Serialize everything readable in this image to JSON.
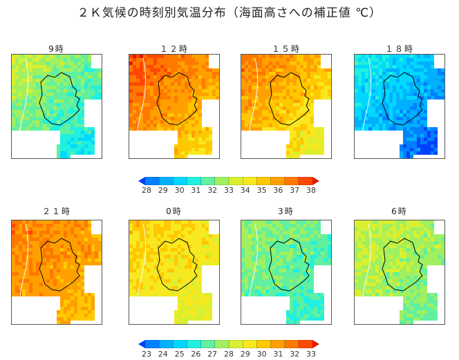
{
  "title": "２Ｋ気候の時刻別気温分布（海面高さへの補正値 ℃）",
  "colors": {
    "scale": [
      "#0040ff",
      "#0080ff",
      "#00b0ff",
      "#00d8ff",
      "#20f0e0",
      "#60f0a0",
      "#a0f060",
      "#d8f030",
      "#f8e820",
      "#ffc800",
      "#ffa000",
      "#ff7800",
      "#ff4800",
      "#e01800"
    ],
    "outline": "#000000",
    "land_edge": "#ffffff"
  },
  "panels": [
    {
      "label": "9時",
      "row": 0,
      "base": 5,
      "spread": 2
    },
    {
      "label": "１２時",
      "row": 0,
      "base": 10,
      "spread": 2
    },
    {
      "label": "１５時",
      "row": 0,
      "base": 9,
      "spread": 2
    },
    {
      "label": "１８時",
      "row": 0,
      "base": 2,
      "spread": 2
    },
    {
      "label": "２１時",
      "row": 1,
      "base": 10,
      "spread": 1
    },
    {
      "label": "0時",
      "row": 1,
      "base": 8,
      "spread": 1
    },
    {
      "label": "3時",
      "row": 1,
      "base": 5,
      "spread": 1
    },
    {
      "label": "6時",
      "row": 1,
      "base": 6,
      "spread": 1
    }
  ],
  "colorbars": [
    {
      "ticks": [
        "28",
        "29",
        "30",
        "31",
        "32",
        "33",
        "34",
        "35",
        "36",
        "37",
        "38"
      ]
    },
    {
      "ticks": [
        "23",
        "24",
        "25",
        "26",
        "27",
        "28",
        "29",
        "30",
        "31",
        "32",
        "33"
      ]
    }
  ]
}
